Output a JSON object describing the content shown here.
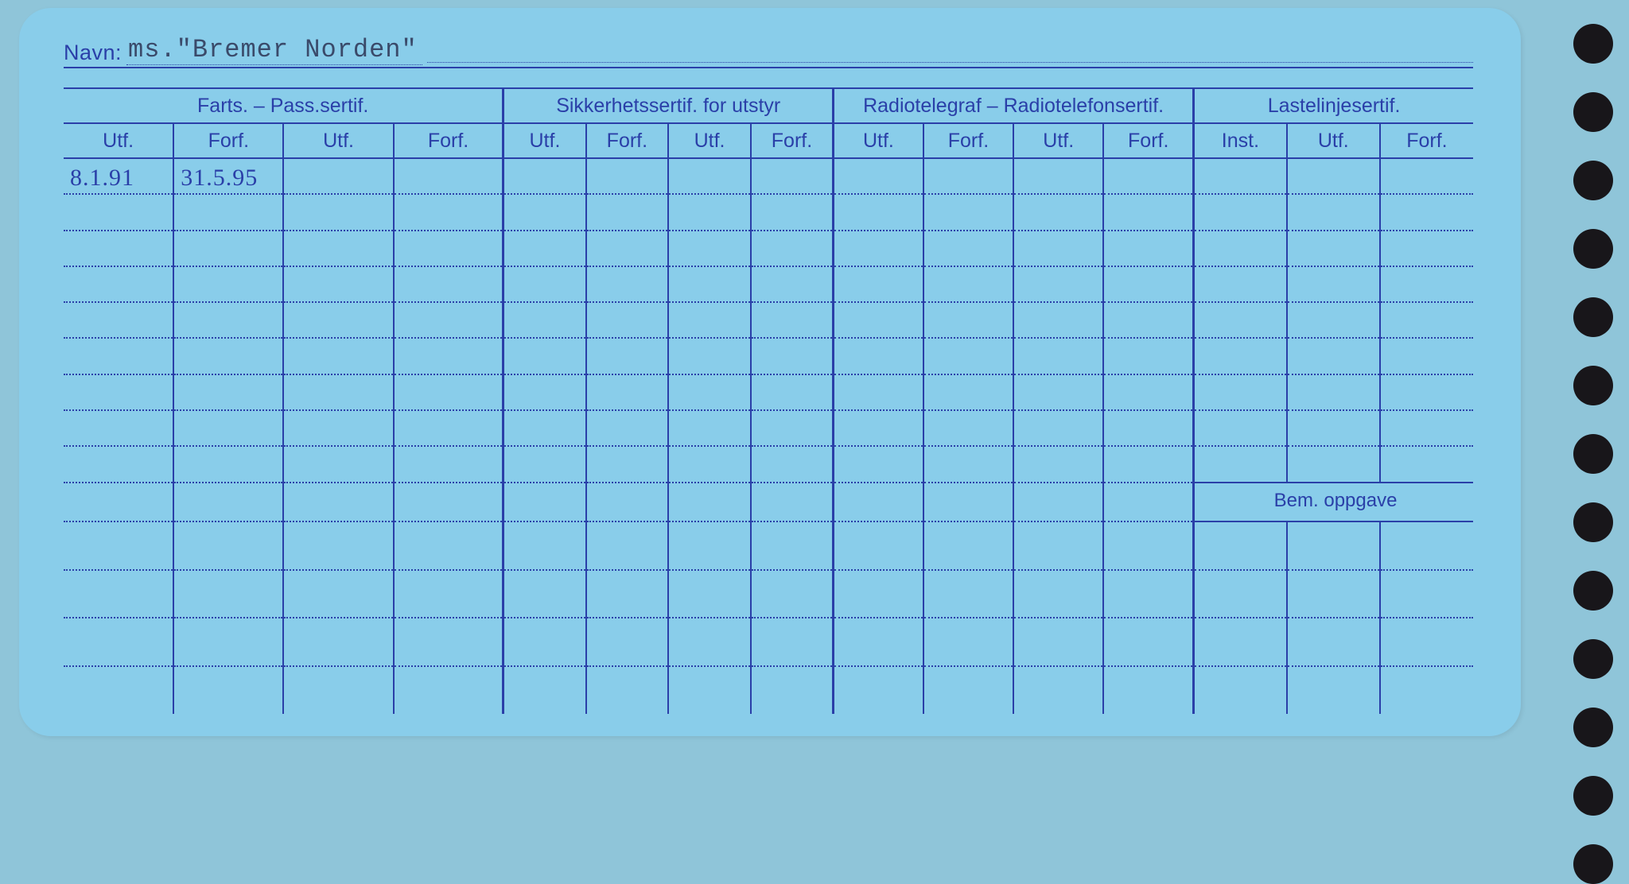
{
  "colors": {
    "page_bg": "#8fc5d9",
    "card_bg": "#89cdea",
    "ink": "#2a3fa8",
    "typed": "#3a4a6a",
    "hole": "#18161a"
  },
  "navn": {
    "label": "Navn:",
    "value": "ms.\"Bremer Norden\""
  },
  "groups": {
    "g1": "Farts. – Pass.sertif.",
    "g2": "Sikkerhetssertif. for utstyr",
    "g3": "Radiotelegraf – Radiotelefonsertif.",
    "g4": "Lastelinjesertif."
  },
  "sub": {
    "utf": "Utf.",
    "forf": "Forf.",
    "inst": "Inst."
  },
  "entries": {
    "r0c0": "8.1.91",
    "r0c1": "31.5.95"
  },
  "bem": "Bem. oppgave",
  "layout": {
    "body_rows_before_bem": 9,
    "body_rows_after_bem": 4,
    "punch_holes": 13
  }
}
